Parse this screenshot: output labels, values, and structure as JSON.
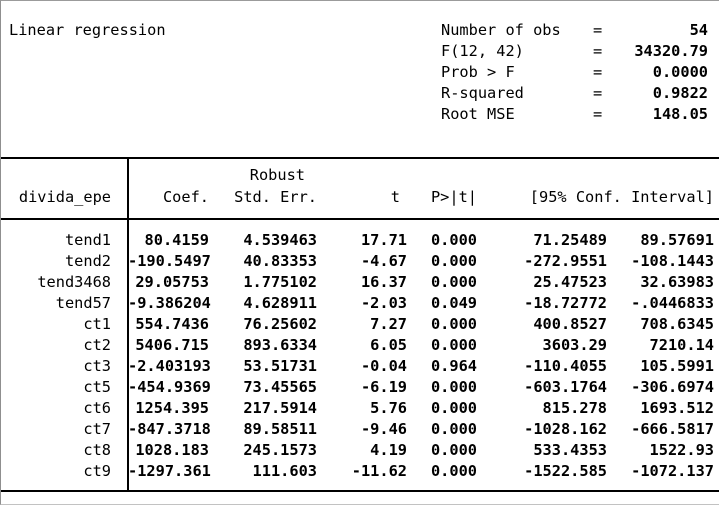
{
  "header": {
    "title": "Linear regression",
    "eq_sign": "=",
    "stats": [
      {
        "label": "Number of obs",
        "value": "54"
      },
      {
        "label": "F(12, 42)",
        "value": "34320.79"
      },
      {
        "label": "Prob > F",
        "value": "0.0000"
      },
      {
        "label": "R-squared",
        "value": "0.9822"
      },
      {
        "label": "Root MSE",
        "value": "148.05"
      }
    ]
  },
  "table": {
    "depvar": "divida_epe",
    "robust_label": "Robust",
    "col_coef": "Coef.",
    "col_se": "Std. Err.",
    "col_t": "t",
    "col_p": "P>|t|",
    "col_ci": "[95% Conf. Interval]",
    "rows": [
      {
        "var": "tend1",
        "coef": "80.4159",
        "se": "4.539463",
        "t": "17.71",
        "p": "0.000",
        "ci_lo": "71.25489",
        "ci_hi": "89.57691"
      },
      {
        "var": "tend2",
        "coef": "-190.5497",
        "se": "40.83353",
        "t": "-4.67",
        "p": "0.000",
        "ci_lo": "-272.9551",
        "ci_hi": "-108.1443"
      },
      {
        "var": "tend3468",
        "coef": "29.05753",
        "se": "1.775102",
        "t": "16.37",
        "p": "0.000",
        "ci_lo": "25.47523",
        "ci_hi": "32.63983"
      },
      {
        "var": "tend57",
        "coef": "-9.386204",
        "se": "4.628911",
        "t": "-2.03",
        "p": "0.049",
        "ci_lo": "-18.72772",
        "ci_hi": "-.0446833"
      },
      {
        "var": "ct1",
        "coef": "554.7436",
        "se": "76.25602",
        "t": "7.27",
        "p": "0.000",
        "ci_lo": "400.8527",
        "ci_hi": "708.6345"
      },
      {
        "var": "ct2",
        "coef": "5406.715",
        "se": "893.6334",
        "t": "6.05",
        "p": "0.000",
        "ci_lo": "3603.29",
        "ci_hi": "7210.14"
      },
      {
        "var": "ct3",
        "coef": "-2.403193",
        "se": "53.51731",
        "t": "-0.04",
        "p": "0.964",
        "ci_lo": "-110.4055",
        "ci_hi": "105.5991"
      },
      {
        "var": "ct5",
        "coef": "-454.9369",
        "se": "73.45565",
        "t": "-6.19",
        "p": "0.000",
        "ci_lo": "-603.1764",
        "ci_hi": "-306.6974"
      },
      {
        "var": "ct6",
        "coef": "1254.395",
        "se": "217.5914",
        "t": "5.76",
        "p": "0.000",
        "ci_lo": "815.278",
        "ci_hi": "1693.512"
      },
      {
        "var": "ct7",
        "coef": "-847.3718",
        "se": "89.58511",
        "t": "-9.46",
        "p": "0.000",
        "ci_lo": "-1028.162",
        "ci_hi": "-666.5817"
      },
      {
        "var": "ct8",
        "coef": "1028.183",
        "se": "245.1573",
        "t": "4.19",
        "p": "0.000",
        "ci_lo": "533.4353",
        "ci_hi": "1522.93"
      },
      {
        "var": "ct9",
        "coef": "-1297.361",
        "se": "111.603",
        "t": "-11.62",
        "p": "0.000",
        "ci_lo": "-1522.585",
        "ci_hi": "-1072.137"
      }
    ]
  }
}
